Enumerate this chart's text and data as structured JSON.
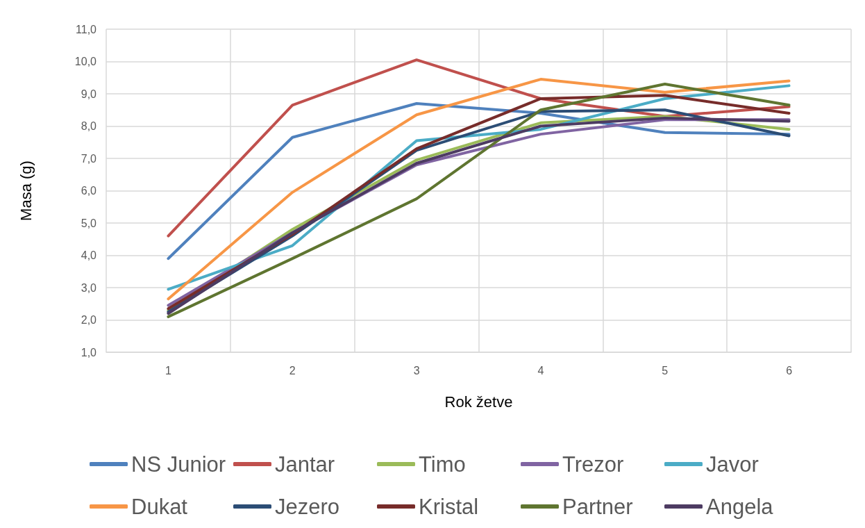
{
  "chart_data": {
    "type": "line",
    "xlabel": "Rok žetve",
    "ylabel": "Masa (g)",
    "categories": [
      "1",
      "2",
      "3",
      "4",
      "5",
      "6"
    ],
    "ylim": [
      1,
      11
    ],
    "yticks": [
      {
        "value": 1,
        "label": "1,0"
      },
      {
        "value": 2,
        "label": "2,0"
      },
      {
        "value": 3,
        "label": "3,0"
      },
      {
        "value": 4,
        "label": "4,0"
      },
      {
        "value": 5,
        "label": "5,0"
      },
      {
        "value": 6,
        "label": "6,0"
      },
      {
        "value": 7,
        "label": "7,0"
      },
      {
        "value": 8,
        "label": "8,0"
      },
      {
        "value": 9,
        "label": "9,0"
      },
      {
        "value": 10,
        "label": "10,0"
      },
      {
        "value": 11,
        "label": "11,0"
      }
    ],
    "grid": true,
    "legend": "bottom",
    "marker": "none",
    "line_style": "solid",
    "series": [
      {
        "name": "NS Junior",
        "color": "#4f81bd",
        "values": [
          3.9,
          7.65,
          8.7,
          8.4,
          7.8,
          7.75
        ]
      },
      {
        "name": "Jantar",
        "color": "#c0504d",
        "values": [
          4.6,
          8.65,
          10.05,
          8.85,
          8.3,
          8.6
        ]
      },
      {
        "name": "Timo",
        "color": "#9bbb59",
        "values": [
          2.3,
          4.8,
          6.95,
          8.1,
          8.3,
          7.9
        ]
      },
      {
        "name": "Trezor",
        "color": "#8064a2",
        "values": [
          2.45,
          4.7,
          6.8,
          7.75,
          8.2,
          8.2
        ]
      },
      {
        "name": "Javor",
        "color": "#4bacc6",
        "values": [
          2.95,
          4.3,
          7.55,
          7.9,
          8.85,
          9.25
        ]
      },
      {
        "name": "Dukat",
        "color": "#f79646",
        "values": [
          2.65,
          5.95,
          8.35,
          9.45,
          9.05,
          9.4
        ]
      },
      {
        "name": "Jezero",
        "color": "#2c4d75",
        "values": [
          2.25,
          4.6,
          7.25,
          8.45,
          8.5,
          7.7
        ]
      },
      {
        "name": "Kristal",
        "color": "#772c2a",
        "values": [
          2.35,
          4.65,
          7.3,
          8.85,
          8.95,
          8.4
        ]
      },
      {
        "name": "Partner",
        "color": "#5f7530",
        "values": [
          2.1,
          3.9,
          5.75,
          8.5,
          9.3,
          8.65
        ]
      },
      {
        "name": "Angela",
        "color": "#4d3b62",
        "values": [
          2.2,
          4.7,
          6.85,
          8.0,
          8.25,
          8.15
        ]
      }
    ]
  }
}
